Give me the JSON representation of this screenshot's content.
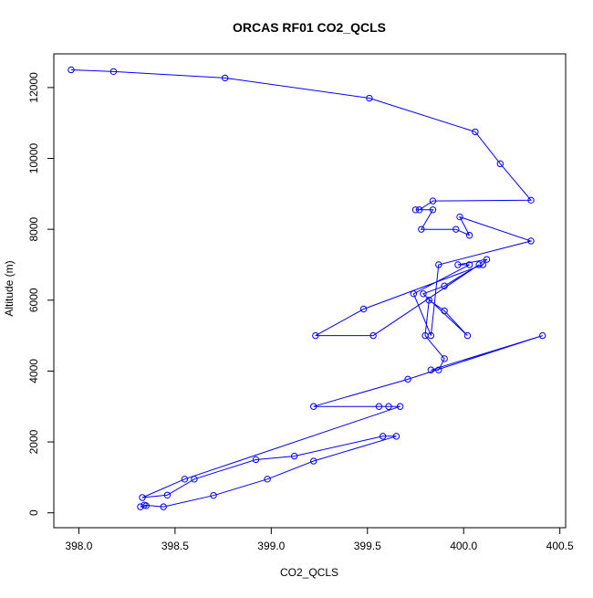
{
  "chart_data": {
    "type": "line",
    "title": "ORCAS RF01 CO2_QCLS",
    "xlabel": "CO2_QCLS",
    "ylabel": "Altitude (m)",
    "xlim": [
      397.87,
      400.53
    ],
    "ylim": [
      -420,
      12950
    ],
    "xticks": [
      398.0,
      398.5,
      399.0,
      399.5,
      400.0,
      400.5
    ],
    "xtick_labels": [
      "398.0",
      "398.5",
      "399.0",
      "399.5",
      "400.0",
      "400.5"
    ],
    "yticks": [
      0,
      2000,
      4000,
      6000,
      8000,
      10000,
      12000
    ],
    "ytick_labels": [
      "0",
      "2000",
      "4000",
      "6000",
      "8000",
      "10000",
      "12000"
    ],
    "grid": false,
    "legend": "none",
    "markers": "open-circle",
    "series_color": "#0000ff",
    "series": [
      {
        "x": [
          398.32,
          398.35,
          398.34,
          398.44,
          398.7,
          398.98,
          399.22,
          399.65,
          399.58,
          399.12,
          398.92,
          398.6,
          398.46,
          398.33,
          398.55,
          399.67,
          399.61,
          399.56,
          399.22,
          399.71,
          400.41,
          399.83,
          399.87,
          399.9,
          399.8,
          399.82,
          399.9,
          400.02,
          399.79,
          399.9,
          400.08,
          399.53,
          399.23,
          399.48,
          400.1,
          400.12,
          399.97,
          400.03,
          399.74,
          399.83,
          399.87,
          400.35,
          399.98,
          400.03,
          399.96,
          399.78,
          399.84,
          399.75,
          399.77,
          399.84,
          400.35,
          400.19,
          400.06,
          399.51,
          398.76,
          398.18,
          397.96
        ],
        "y": [
          170,
          200,
          220,
          170,
          490,
          950,
          1460,
          2160,
          2160,
          1600,
          1500,
          950,
          500,
          430,
          950,
          3000,
          3000,
          3000,
          3000,
          3770,
          5000,
          4030,
          4030,
          4350,
          5000,
          6000,
          5700,
          5000,
          6180,
          6400,
          7000,
          5000,
          5000,
          5750,
          7000,
          7150,
          7000,
          7000,
          6180,
          5000,
          7000,
          7670,
          8350,
          7830,
          8000,
          8000,
          8550,
          8550,
          8550,
          8800,
          8820,
          9850,
          10750,
          11700,
          12270,
          12450,
          12500
        ]
      }
    ]
  }
}
